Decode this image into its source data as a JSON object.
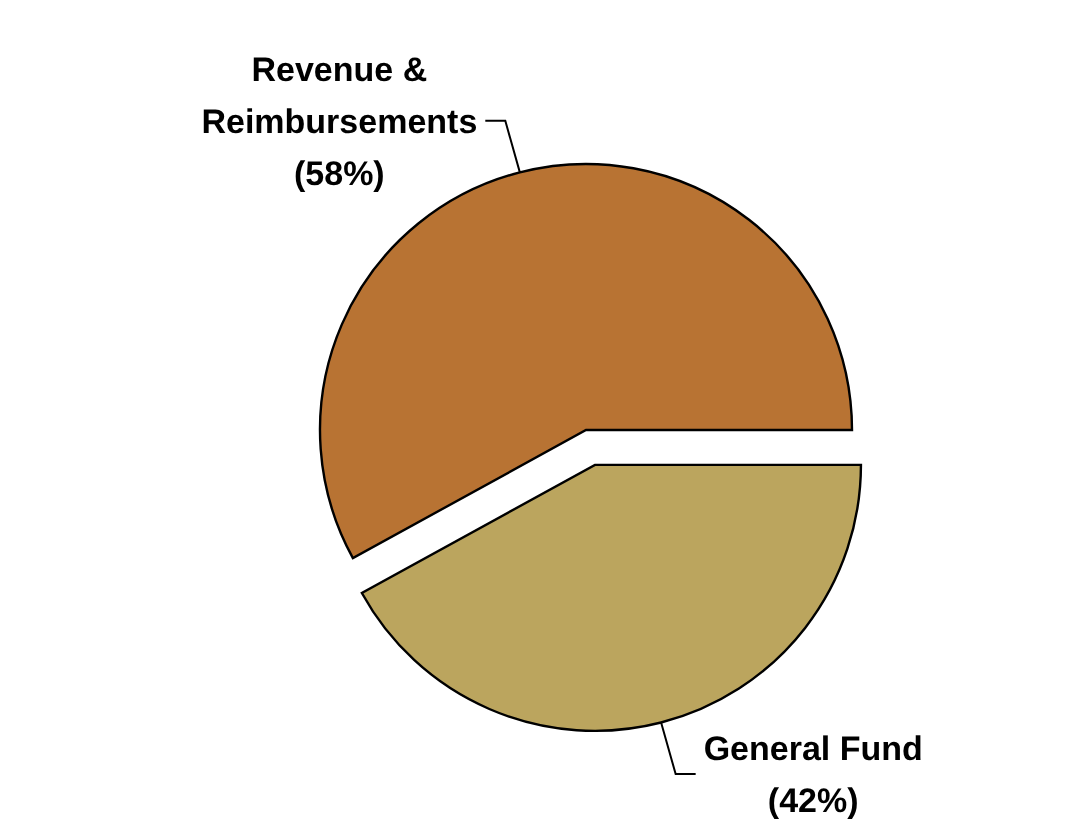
{
  "chart_data": {
    "type": "pie",
    "categories": [
      "Revenue & Reimbursements",
      "General Fund"
    ],
    "values": [
      58,
      42
    ],
    "value_labels": [
      "(58%)",
      "(42%)"
    ],
    "colors": [
      "#b87333",
      "#bba55e"
    ]
  }
}
